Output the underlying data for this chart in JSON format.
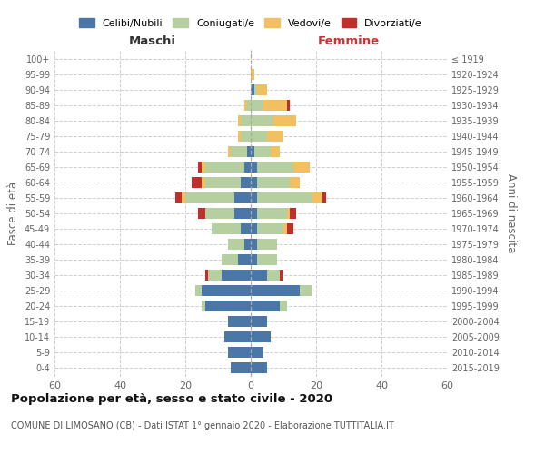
{
  "age_groups": [
    "0-4",
    "5-9",
    "10-14",
    "15-19",
    "20-24",
    "25-29",
    "30-34",
    "35-39",
    "40-44",
    "45-49",
    "50-54",
    "55-59",
    "60-64",
    "65-69",
    "70-74",
    "75-79",
    "80-84",
    "85-89",
    "90-94",
    "95-99",
    "100+"
  ],
  "birth_years": [
    "2015-2019",
    "2010-2014",
    "2005-2009",
    "2000-2004",
    "1995-1999",
    "1990-1994",
    "1985-1989",
    "1980-1984",
    "1975-1979",
    "1970-1974",
    "1965-1969",
    "1960-1964",
    "1955-1959",
    "1950-1954",
    "1945-1949",
    "1940-1944",
    "1935-1939",
    "1930-1934",
    "1925-1929",
    "1920-1924",
    "≤ 1919"
  ],
  "maschi": {
    "celibi": [
      6,
      7,
      8,
      7,
      14,
      15,
      9,
      4,
      2,
      3,
      5,
      5,
      3,
      2,
      1,
      0,
      0,
      0,
      0,
      0,
      0
    ],
    "coniugati": [
      0,
      0,
      0,
      0,
      1,
      2,
      4,
      5,
      5,
      9,
      9,
      15,
      11,
      12,
      5,
      3,
      3,
      1,
      0,
      0,
      0
    ],
    "vedovi": [
      0,
      0,
      0,
      0,
      0,
      0,
      0,
      0,
      0,
      0,
      0,
      1,
      1,
      1,
      1,
      1,
      1,
      1,
      0,
      0,
      0
    ],
    "divorziati": [
      0,
      0,
      0,
      0,
      0,
      0,
      1,
      0,
      0,
      0,
      2,
      2,
      3,
      1,
      0,
      0,
      0,
      0,
      0,
      0,
      0
    ]
  },
  "femmine": {
    "nubili": [
      5,
      4,
      6,
      5,
      9,
      15,
      5,
      2,
      2,
      2,
      2,
      2,
      2,
      2,
      1,
      0,
      0,
      0,
      1,
      0,
      0
    ],
    "coniugate": [
      0,
      0,
      0,
      0,
      2,
      4,
      4,
      6,
      6,
      8,
      9,
      17,
      10,
      11,
      5,
      5,
      7,
      4,
      1,
      0,
      0
    ],
    "vedove": [
      0,
      0,
      0,
      0,
      0,
      0,
      0,
      0,
      0,
      1,
      1,
      3,
      3,
      5,
      3,
      5,
      7,
      7,
      3,
      1,
      0
    ],
    "divorziate": [
      0,
      0,
      0,
      0,
      0,
      0,
      1,
      0,
      0,
      2,
      2,
      1,
      0,
      0,
      0,
      0,
      0,
      1,
      0,
      0,
      0
    ]
  },
  "colors": {
    "celibi": "#4b76a8",
    "coniugati": "#b5cfa0",
    "vedovi": "#f2c060",
    "divorziati": "#c0302a"
  },
  "legend_labels": [
    "Celibi/Nubili",
    "Coniugati/e",
    "Vedovi/e",
    "Divorziati/e"
  ],
  "xlabel_left": "Maschi",
  "xlabel_right": "Femmine",
  "ylabel_left": "Fasce di età",
  "ylabel_right": "Anni di nascita",
  "title": "Popolazione per età, sesso e stato civile - 2020",
  "subtitle": "COMUNE DI LIMOSANO (CB) - Dati ISTAT 1° gennaio 2020 - Elaborazione TUTTITALIA.IT",
  "xlim": 60,
  "background_color": "#ffffff",
  "bar_height": 0.72
}
